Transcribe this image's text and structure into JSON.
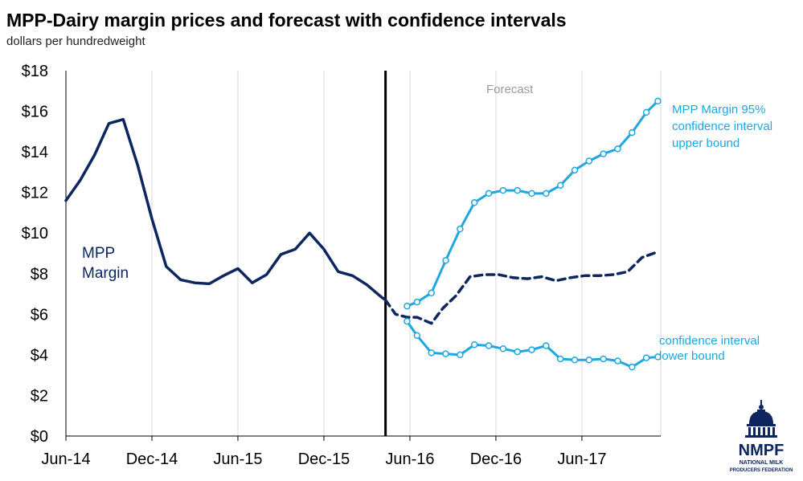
{
  "title": "MPP-Dairy margin prices and forecast with confidence intervals",
  "subtitle": "dollars per hundredweight",
  "logo": {
    "name": "NMPF",
    "subline1": "NATIONAL MILK",
    "subline2": "PRODUCERS FEDERATION"
  },
  "chart_data": {
    "type": "line",
    "title": "MPP-Dairy margin prices and forecast with confidence intervals",
    "ylabel": "dollars per hundredweight",
    "ylim": [
      0,
      18
    ],
    "yticks": [
      "$0",
      "$2",
      "$4",
      "$6",
      "$8",
      "$10",
      "$12",
      "$14",
      "$16",
      "$18"
    ],
    "xticks": [
      "Jun-14",
      "Dec-14",
      "Jun-15",
      "Dec-15",
      "Jun-16",
      "Dec-16",
      "Jun-17"
    ],
    "xtick_months": [
      0,
      6,
      12,
      18,
      24,
      30,
      36
    ],
    "forecast_label": "Forecast",
    "forecast_start_month": 22.3,
    "grid": "vertical",
    "series": [
      {
        "name": "MPP Margin",
        "style": "solid",
        "color": "#0d2660",
        "x": [
          0,
          1,
          2,
          3,
          4,
          5,
          6,
          7,
          8,
          9,
          10,
          11,
          12,
          13,
          14,
          15,
          16,
          17,
          18,
          19,
          20,
          21,
          22,
          22.3
        ],
        "y": [
          11.6,
          12.6,
          13.85,
          15.4,
          15.6,
          13.35,
          10.7,
          8.35,
          7.7,
          7.55,
          7.5,
          7.9,
          8.25,
          7.55,
          7.95,
          8.95,
          9.2,
          10.0,
          9.2,
          8.1,
          7.9,
          7.45,
          6.85,
          6.7
        ]
      },
      {
        "name": "MPP Margin forecast",
        "style": "dashed",
        "color": "#0d2660",
        "x": [
          22.3,
          23,
          23.8,
          24.5,
          25.5,
          26.3,
          27.2,
          28.2,
          29.2,
          30.2,
          31.2,
          32.2,
          33.2,
          34.2,
          35.2,
          36.2,
          37.2,
          38.2,
          39.2,
          40.2,
          41.2
        ],
        "y": [
          6.7,
          6.0,
          5.85,
          5.85,
          5.55,
          6.3,
          6.9,
          7.85,
          7.95,
          7.95,
          7.8,
          7.75,
          7.85,
          7.65,
          7.8,
          7.9,
          7.9,
          7.95,
          8.1,
          8.8,
          9.05
        ]
      },
      {
        "name": "MPP Margin 95% confidence interval upper bound",
        "label_lines": [
          "MPP Margin 95%",
          "confidence interval",
          "upper bound"
        ],
        "style": "solid-markers",
        "color": "#1ea7e0",
        "x": [
          23.8,
          24.5,
          25.5,
          26.5,
          27.5,
          28.5,
          29.5,
          30.5,
          31.5,
          32.5,
          33.5,
          34.5,
          35.5,
          36.5,
          37.5,
          38.5,
          39.5,
          40.5,
          41.3
        ],
        "y": [
          6.4,
          6.6,
          7.05,
          8.65,
          10.2,
          11.5,
          11.95,
          12.1,
          12.1,
          11.95,
          11.95,
          12.35,
          13.1,
          13.55,
          13.9,
          14.15,
          14.95,
          15.95,
          16.5
        ]
      },
      {
        "name": "confidence interval lower bound",
        "label_lines": [
          "confidence interval",
          "lower bound"
        ],
        "style": "solid-markers",
        "color": "#1ea7e0",
        "x": [
          23.8,
          24.5,
          25.5,
          26.5,
          27.5,
          28.5,
          29.5,
          30.5,
          31.5,
          32.5,
          33.5,
          34.5,
          35.5,
          36.5,
          37.5,
          38.5,
          39.5,
          40.5,
          41.3
        ],
        "y": [
          5.65,
          4.95,
          4.1,
          4.05,
          4.0,
          4.5,
          4.45,
          4.3,
          4.15,
          4.25,
          4.45,
          3.8,
          3.75,
          3.75,
          3.8,
          3.7,
          3.4,
          3.85,
          3.9
        ]
      }
    ],
    "series_labels": {
      "mpp_line1": "MPP",
      "mpp_line2": "Margin"
    }
  }
}
